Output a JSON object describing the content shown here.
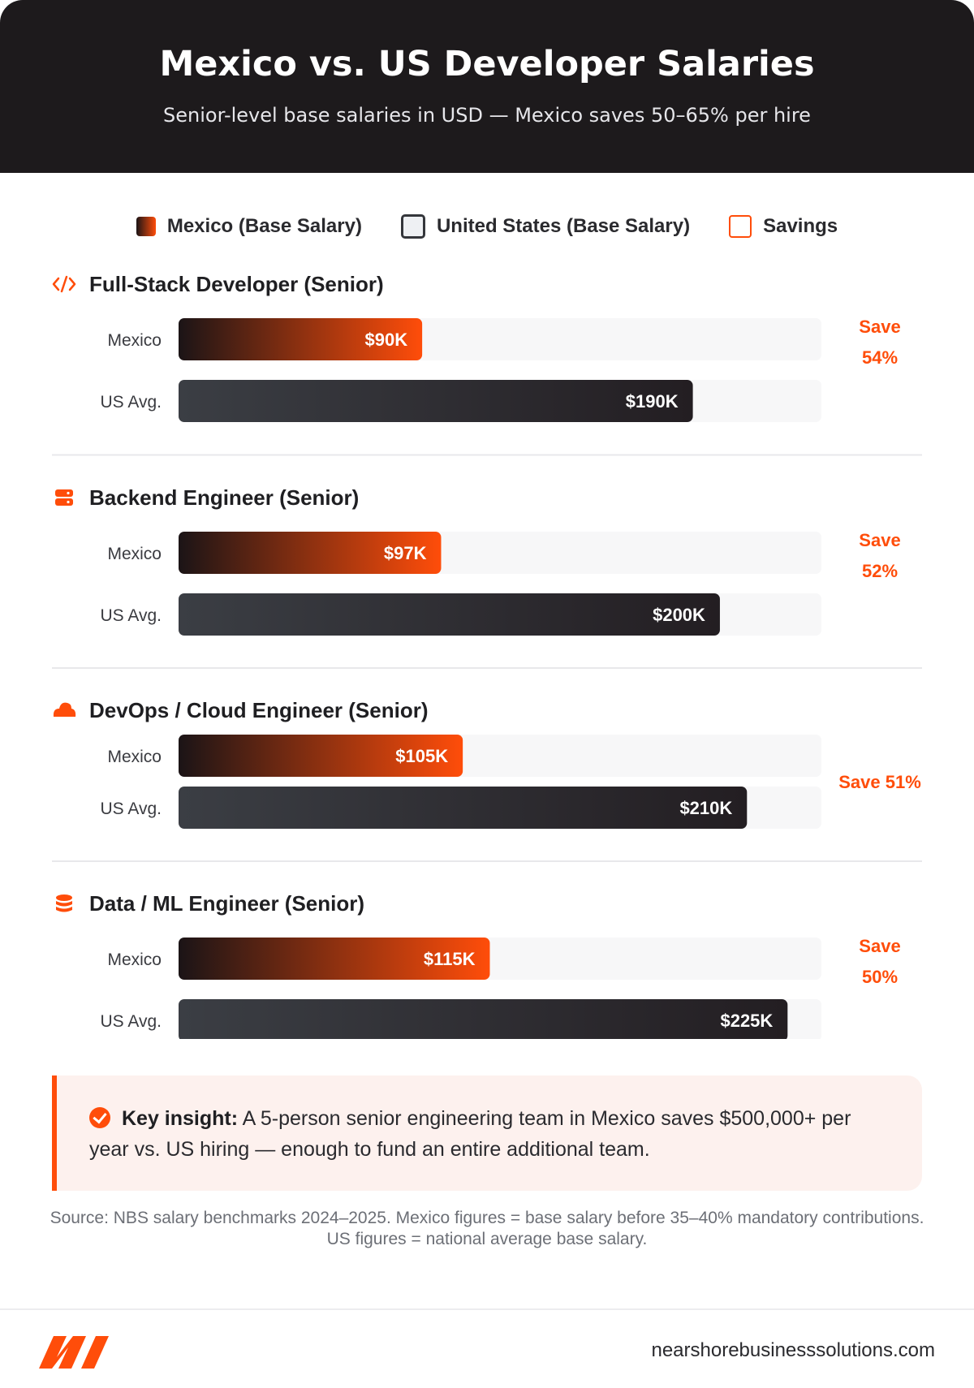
{
  "header": {
    "title": "Mexico vs. US Developer Salaries",
    "subtitle": "Senior-level base salaries in USD — Mexico saves 50–65% per hire"
  },
  "legend": [
    {
      "label": "Mexico (Base Salary)"
    },
    {
      "label": "United States (Base Salary)"
    },
    {
      "label": "Savings"
    }
  ],
  "colors": {
    "mexico_start": "#1b1416",
    "mexico_end": "#ff4d0a",
    "us_start": "#3b3e44",
    "us_end": "#231e22",
    "accent": "#ff4d0a",
    "track": "#f7f7f8"
  },
  "chart_data": {
    "type": "bar",
    "orientation": "horizontal",
    "xlim": [
      0,
      237500
    ],
    "row_labels": [
      "Mexico",
      "US Avg."
    ],
    "groups": [
      {
        "title": "Full-Stack Developer (Senior)",
        "icon": "code-icon",
        "mexico": 90000,
        "mexico_label": "$90K",
        "us": 190000,
        "us_label": "$190K",
        "savings_lines": [
          "Save",
          "54%"
        ]
      },
      {
        "title": "Backend Engineer (Senior)",
        "icon": "server-icon",
        "mexico": 97000,
        "mexico_label": "$97K",
        "us": 200000,
        "us_label": "$200K",
        "savings_lines": [
          "Save",
          "52%"
        ]
      },
      {
        "title": "DevOps / Cloud Engineer (Senior)",
        "icon": "cloud-icon",
        "mexico": 105000,
        "mexico_label": "$105K",
        "us": 210000,
        "us_label": "$210K",
        "savings_lines": [
          "Save 51%"
        ]
      },
      {
        "title": "Data / ML Engineer (Senior)",
        "icon": "database-icon",
        "mexico": 115000,
        "mexico_label": "$115K",
        "us": 225000,
        "us_label": "$225K",
        "savings_lines": [
          "Save",
          "50%"
        ]
      }
    ]
  },
  "insight": {
    "lead": "Key insight:",
    "text": " A 5-person senior engineering team in Mexico saves $500,000+ per year vs. US hiring — enough to fund an entire additional team."
  },
  "source": "Source: NBS salary benchmarks 2024–2025. Mexico figures = base salary before 35–40% mandatory contributions. US figures = national average base salary.",
  "footer": {
    "logo_icon": "nbs-logo-icon",
    "site": "nearshorebusinesssolutions.com"
  }
}
